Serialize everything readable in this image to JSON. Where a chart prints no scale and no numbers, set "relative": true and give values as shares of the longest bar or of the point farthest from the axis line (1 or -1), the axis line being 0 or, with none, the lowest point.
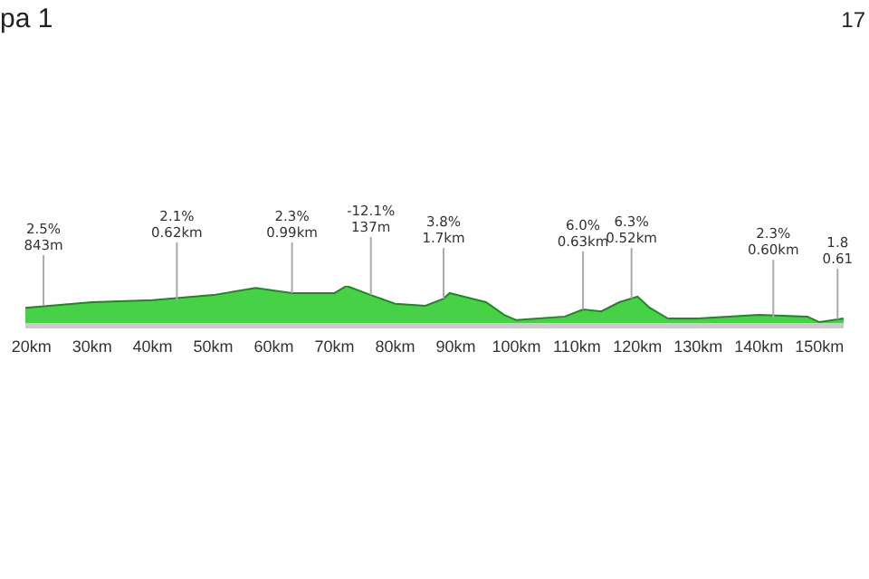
{
  "chart_data": {
    "type": "area",
    "title": "pa 1",
    "subtitle": "17",
    "relative": true,
    "x": [
      19,
      30,
      40,
      50,
      57,
      63,
      70,
      72,
      76,
      80,
      85,
      88,
      89,
      95,
      98,
      100,
      108,
      111,
      114,
      117,
      120,
      122,
      125,
      130,
      140,
      148,
      150,
      154
    ],
    "series": [
      {
        "color": "#33cc33",
        "values": [
          0.45,
          0.59,
          0.64,
          0.77,
          0.95,
          0.82,
          0.82,
          1,
          0.77,
          0.55,
          0.5,
          0.68,
          0.82,
          0.59,
          0.27,
          0.14,
          0.23,
          0.41,
          0.36,
          0.59,
          0.73,
          0.45,
          0.18,
          0.18,
          0.27,
          0.23,
          0.09,
          0.18
        ]
      }
    ],
    "xlim": [
      19,
      154
    ],
    "xticks": [
      {
        "value": 20,
        "label": "20km"
      },
      {
        "value": 30,
        "label": "30km"
      },
      {
        "value": 40,
        "label": "40km"
      },
      {
        "value": 50,
        "label": "50km"
      },
      {
        "value": 60,
        "label": "60km"
      },
      {
        "value": 70,
        "label": "70km"
      },
      {
        "value": 80,
        "label": "80km"
      },
      {
        "value": 90,
        "label": "90km"
      },
      {
        "value": 100,
        "label": "100km"
      },
      {
        "value": 110,
        "label": "110km"
      },
      {
        "value": 120,
        "label": "120km"
      },
      {
        "value": 130,
        "label": "130km"
      },
      {
        "value": 140,
        "label": "140km"
      },
      {
        "value": 150,
        "label": "150km"
      }
    ],
    "grid": false,
    "legend": false,
    "annotations": [
      {
        "text": "2.5%\n843m",
        "x": 22,
        "y": 0.5
      },
      {
        "text": "2.1%\n0.62km",
        "x": 44,
        "y": 0.64
      },
      {
        "text": "2.3%\n0.99km",
        "x": 63,
        "y": 0.82
      },
      {
        "text": "-12.1%\n137m",
        "x": 76,
        "y": 0.77
      },
      {
        "text": "3.8%\n1.7km",
        "x": 88,
        "y": 0.68
      },
      {
        "text": "6.0%\n0.63km",
        "x": 111,
        "y": 0.41
      },
      {
        "text": "6.3%\n0.52km",
        "x": 119,
        "y": 0.68
      },
      {
        "text": "2.3%\n0.60km",
        "x": 142.4,
        "y": 0.2
      },
      {
        "text": "1.8\n0.61",
        "x": 153,
        "y": 0.16
      }
    ]
  }
}
